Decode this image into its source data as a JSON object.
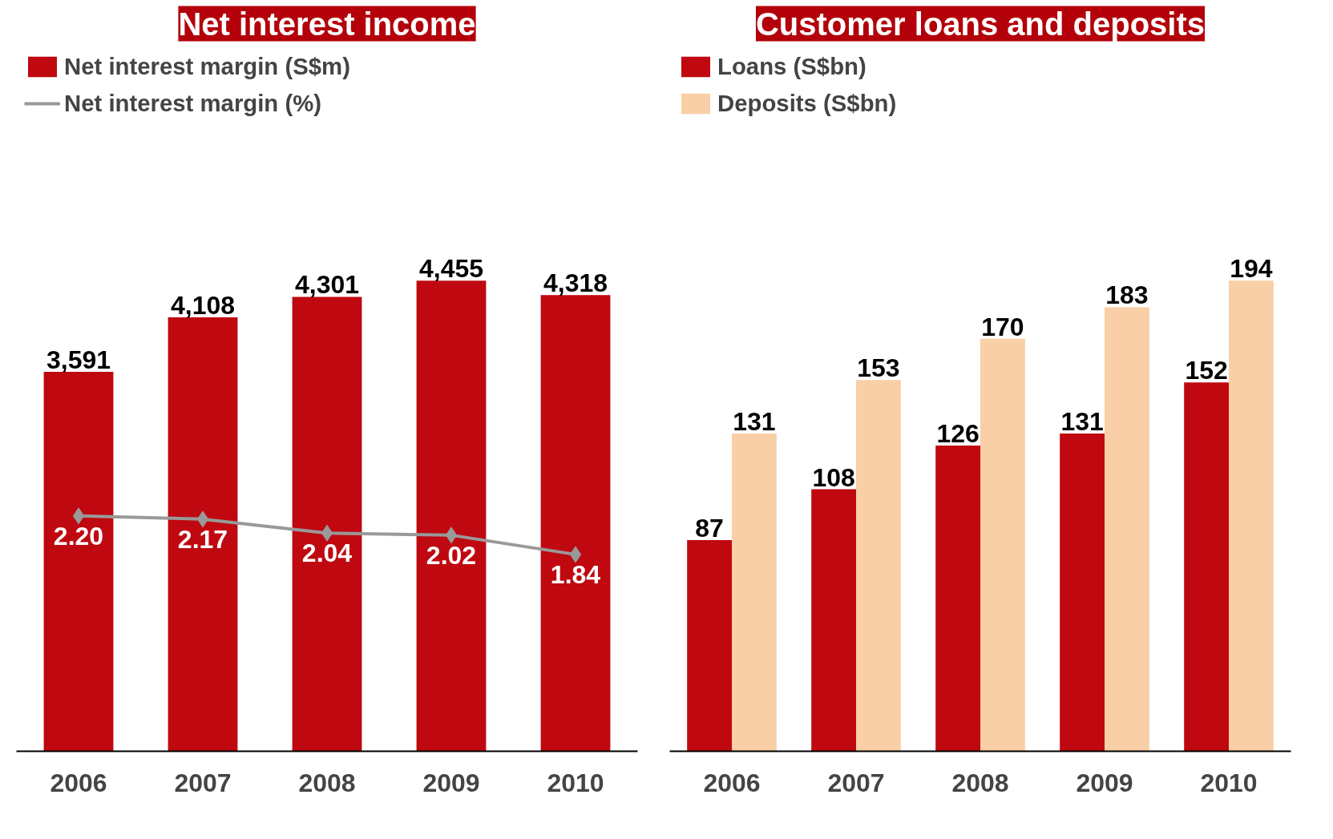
{
  "chart_data": [
    {
      "type": "bar",
      "title": "Net interest income",
      "categories": [
        "2006",
        "2007",
        "2008",
        "2009",
        "2010"
      ],
      "tick_labels": "x",
      "grid": false,
      "legend": "top left",
      "series": [
        {
          "name": "Net interest margin (S$m)",
          "type": "bar",
          "color": "#bf0810",
          "values": [
            3591,
            4108,
            4301,
            4455,
            4318
          ],
          "value_labels": [
            "3,591",
            "4,108",
            "4,301",
            "4,455",
            "4,318"
          ]
        },
        {
          "name": "Net interest margin (%)",
          "type": "line",
          "axis": "y2",
          "marker": "diamond",
          "color": "#999999",
          "values": [
            2.2,
            2.17,
            2.04,
            2.02,
            1.84
          ],
          "value_labels": [
            "2.20",
            "2.17",
            "2.04",
            "2.02",
            "1.84"
          ]
        }
      ]
    },
    {
      "type": "bar",
      "title": "Customer loans and deposits",
      "categories": [
        "2006",
        "2007",
        "2008",
        "2009",
        "2010"
      ],
      "tick_labels": "x",
      "grid": false,
      "legend": "top left",
      "series": [
        {
          "name": "Loans (S$bn)",
          "color": "#bf0810",
          "values": [
            87,
            108,
            126,
            131,
            152
          ],
          "value_labels": [
            "87",
            "108",
            "126",
            "131",
            "152"
          ]
        },
        {
          "name": "Deposits (S$bn)",
          "color": "#f8cfa6",
          "values": [
            131,
            153,
            170,
            183,
            194
          ],
          "value_labels": [
            "131",
            "153",
            "170",
            "183",
            "194"
          ]
        }
      ]
    }
  ]
}
